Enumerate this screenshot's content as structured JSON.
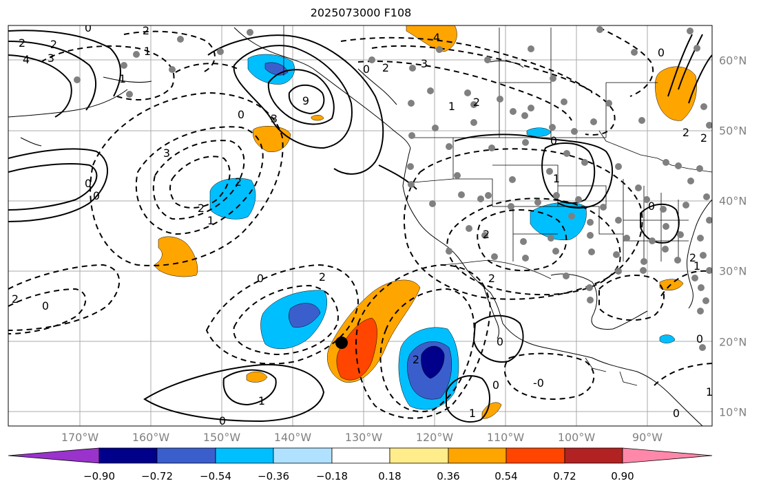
{
  "title": "2025073000 F108",
  "lon_labels": [
    "170°W",
    "160°W",
    "150°W",
    "140°W",
    "130°W",
    "120°W",
    "110°W",
    "100°W",
    "90°W"
  ],
  "lat_labels": [
    "60°N",
    "50°N",
    "40°N",
    "30°N",
    "20°N",
    "10°N"
  ],
  "contour_labels": [
    "2",
    "2",
    "4",
    "3",
    "0",
    "0",
    "0",
    "1",
    "1",
    "2",
    "2",
    "0",
    "3",
    "0",
    "2",
    "1",
    "0",
    "1",
    "2",
    "0",
    "2",
    "2",
    "4",
    "0",
    "9",
    "3",
    "2",
    "1",
    "2",
    "2",
    "0",
    "3",
    "0",
    "2",
    "1",
    "0",
    "2",
    "2",
    "0",
    "0",
    "0",
    "1",
    "-0",
    "1",
    "2",
    "1",
    "0"
  ],
  "colorbar": {
    "ticks": [
      "−0.90",
      "−0.72",
      "−0.54",
      "−0.36",
      "−0.18",
      "0.18",
      "0.36",
      "0.54",
      "0.72",
      "0.90"
    ],
    "colors": [
      "#9933cc",
      "#00008b",
      "#3a5fcd",
      "#00bfff",
      "#b0e2ff",
      "#ffffff",
      "#ffec8b",
      "#ffa500",
      "#ff4500",
      "#b22222",
      "#ff88aa"
    ]
  },
  "colors": {
    "grid": "#aaaaaa",
    "axis_label": "#808080",
    "station_dot": "#808080"
  }
}
